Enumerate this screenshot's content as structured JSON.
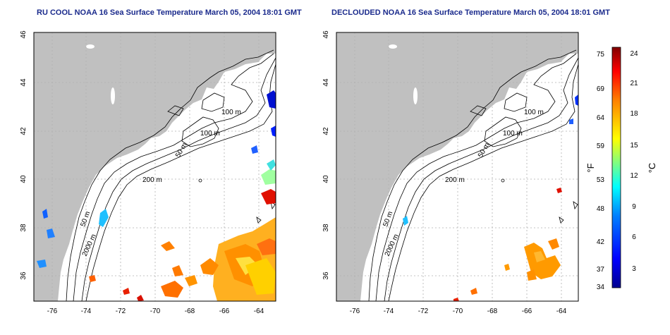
{
  "panels": [
    {
      "title": "RU COOL NOAA 16 Sea Surface Temperature March 05, 2004 18:01 GMT",
      "variant": "full"
    },
    {
      "title": "DECLOUDED NOAA 16 Sea Surface Temperature March 05, 2004 18:01 GMT",
      "variant": "declouded"
    }
  ],
  "axes": {
    "lat_ticks": [
      "36",
      "38",
      "40",
      "42",
      "44",
      "46"
    ],
    "lon_ticks": [
      "-76",
      "-74",
      "-72",
      "-70",
      "-68",
      "-66",
      "-64"
    ]
  },
  "contour_labels": [
    "100 m",
    "100 m",
    "50 m",
    "200 m",
    "50 m",
    "2000 m"
  ],
  "colorbar": {
    "fahrenheit_ticks": [
      "75",
      "69",
      "64",
      "59",
      "53",
      "48",
      "42",
      "37",
      "34"
    ],
    "celsius_ticks": [
      "24",
      "21",
      "18",
      "15",
      "12",
      "9",
      "6",
      "3"
    ],
    "f_label": "°F",
    "c_label": "°C",
    "colors": [
      "#00008f",
      "#0000ff",
      "#0080ff",
      "#00ffff",
      "#80ff80",
      "#ffff00",
      "#ff8000",
      "#ff0000",
      "#800000"
    ]
  },
  "land_color": "#c0c0c0"
}
